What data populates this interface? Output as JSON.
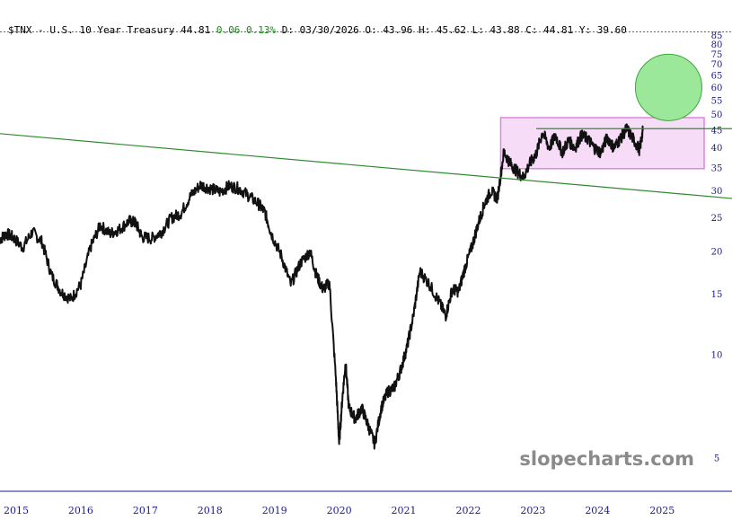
{
  "header": {
    "symbol": "$TNX",
    "name": "U.S. 10 Year Treasury",
    "last": "44.81",
    "change": "0.06",
    "change_pct": "0.13%",
    "date": "D: 03/30/2026",
    "open": "O: 43.96",
    "high": "H: 45.62",
    "low": "L: 43.88",
    "close": "C: 44.81",
    "year": "Y: 39.60"
  },
  "watermark": "slopecharts.com",
  "colors": {
    "price": "#111111",
    "trendline": "#2e8b2e",
    "range_fill": "#f7dcf7",
    "range_border": "#d88ad8",
    "circle_fill": "#9be89b",
    "circle_border": "#3aa83a",
    "axis_text": "#1a1a8c",
    "axis_line": "#1a1a8c",
    "header_change": "#1a8a1a"
  },
  "chart_data": {
    "type": "line",
    "subtype": "daily price bars",
    "scale": "log",
    "ylim": [
      4,
      90
    ],
    "yticks": [
      5,
      10,
      15,
      20,
      25,
      30,
      35,
      40,
      45,
      50,
      55,
      60,
      65,
      70,
      75,
      80,
      85
    ],
    "xlim": [
      2014.8,
      2025.7
    ],
    "xticks": [
      "2015",
      "2016",
      "2017",
      "2018",
      "2019",
      "2020",
      "2021",
      "2022",
      "2023",
      "2024",
      "2025"
    ],
    "grid": false,
    "series": [
      {
        "x": [
          2014.8,
          2014.9,
          2015.0,
          2015.15,
          2015.3,
          2015.45,
          2015.6,
          2015.75,
          2015.9,
          2016.05,
          2016.2,
          2016.35,
          2016.5,
          2016.65,
          2016.8,
          2016.9,
          2017.0,
          2017.15,
          2017.3,
          2017.45,
          2017.6,
          2017.75,
          2017.9,
          2018.05,
          2018.2,
          2018.35,
          2018.5,
          2018.65,
          2018.8,
          2018.9,
          2019.0,
          2019.15,
          2019.3,
          2019.45,
          2019.6,
          2019.7,
          2019.8,
          2019.9,
          2020.0,
          2020.05,
          2020.1,
          2020.15,
          2020.2,
          2020.3,
          2020.4,
          2020.5,
          2020.6,
          2020.7,
          2020.8,
          2020.9,
          2021.0,
          2021.1,
          2021.2,
          2021.3,
          2021.45,
          2021.6,
          2021.7,
          2021.8,
          2021.9,
          2022.0,
          2022.1,
          2022.2,
          2022.3,
          2022.4,
          2022.5,
          2022.6,
          2022.7,
          2022.8,
          2022.9,
          2023.0,
          2023.1,
          2023.2,
          2023.3,
          2023.4,
          2023.5,
          2023.6,
          2023.7,
          2023.8,
          2023.9,
          2024.0,
          2024.1,
          2024.2,
          2024.3,
          2024.4,
          2024.5,
          2024.6,
          2024.7,
          2024.75
        ],
        "y": [
          21.7,
          22.5,
          22.0,
          20.5,
          22.8,
          21.3,
          17.0,
          15.2,
          14.5,
          16.0,
          20.5,
          23.8,
          22.5,
          23.2,
          24.5,
          24.2,
          22.0,
          21.8,
          22.8,
          25.0,
          25.8,
          29.0,
          31.2,
          30.5,
          29.8,
          31.0,
          30.5,
          29.0,
          27.5,
          26.0,
          22.5,
          19.5,
          16.0,
          18.5,
          20.0,
          17.0,
          15.5,
          16.2,
          8.5,
          5.5,
          7.5,
          9.5,
          7.0,
          6.5,
          7.0,
          6.2,
          5.5,
          7.0,
          7.8,
          8.0,
          9.0,
          10.5,
          13.0,
          17.5,
          16.0,
          14.2,
          13.0,
          15.5,
          15.3,
          18.0,
          20.5,
          24.0,
          27.5,
          30.0,
          28.5,
          39.0,
          36.0,
          34.2,
          32.8,
          36.0,
          38.5,
          44.5,
          40.0,
          43.5,
          38.8,
          42.0,
          40.0,
          43.5,
          42.5,
          40.0,
          38.8,
          43.0,
          40.0,
          42.5,
          45.5,
          42.5,
          39.5,
          44.81
        ]
      }
    ],
    "annotations": [
      {
        "type": "trendline",
        "x": [
          2014.8,
          2025.7
        ],
        "y": [
          44.0,
          28.5
        ]
      },
      {
        "type": "horizontal_line",
        "y": 45.5,
        "x_start": 2023.1
      },
      {
        "type": "range_box",
        "x": [
          2022.55,
          2025.7
        ],
        "y": [
          34.8,
          49.0
        ]
      },
      {
        "type": "circle",
        "x": 2025.15,
        "y": 60.0
      },
      {
        "type": "dashed_line",
        "y": 87.0
      }
    ]
  }
}
